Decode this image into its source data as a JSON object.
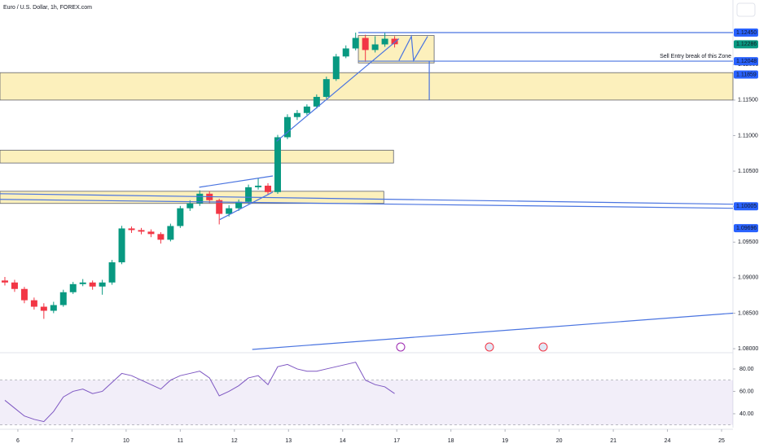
{
  "chart_data": [
    {
      "type": "candlestick",
      "title": "Euro / U.S. Dollar, 1h, FOREX.com",
      "xlim": [
        -0.33,
        13.21
      ],
      "ylim": [
        1.07955,
        1.12909
      ],
      "xticks": [
        {
          "value": 0,
          "label": "6"
        },
        {
          "value": 1,
          "label": "7"
        },
        {
          "value": 2,
          "label": "10"
        },
        {
          "value": 3,
          "label": "11"
        },
        {
          "value": 4,
          "label": "12"
        },
        {
          "value": 5,
          "label": "13"
        },
        {
          "value": 6,
          "label": "14"
        },
        {
          "value": 7,
          "label": "17"
        },
        {
          "value": 8,
          "label": "18"
        },
        {
          "value": 9,
          "label": "19"
        },
        {
          "value": 10,
          "label": "20"
        },
        {
          "value": 11,
          "label": "21"
        },
        {
          "value": 12,
          "label": "24"
        },
        {
          "value": 13,
          "label": "25"
        }
      ],
      "yticks": [
        {
          "value": 1.08,
          "label": "1.08000"
        },
        {
          "value": 1.085,
          "label": "1.08500"
        },
        {
          "value": 1.09,
          "label": "1.09000"
        },
        {
          "value": 1.095,
          "label": "1.09500"
        },
        {
          "value": 1.1,
          "label": "1.10000"
        },
        {
          "value": 1.105,
          "label": "1.10500"
        },
        {
          "value": 1.11,
          "label": "1.11000"
        },
        {
          "value": 1.115,
          "label": "1.11500"
        },
        {
          "value": 1.12,
          "label": "1.12000"
        }
      ],
      "up_color": "#089981",
      "down_color": "#f23645",
      "line_color": "#4a74e0",
      "zone_color": "#fbe9a0",
      "x": [
        -0.24,
        -0.06,
        0.12,
        0.3,
        0.48,
        0.66,
        0.84,
        1.02,
        1.2,
        1.38,
        1.56,
        1.74,
        1.92,
        2.1,
        2.28,
        2.46,
        2.64,
        2.82,
        3.0,
        3.18,
        3.36,
        3.54,
        3.72,
        3.9,
        4.08,
        4.26,
        4.44,
        4.62,
        4.8,
        4.98,
        5.16,
        5.34,
        5.52,
        5.7,
        5.88,
        6.06,
        6.24,
        6.42,
        6.6,
        6.78,
        6.96
      ],
      "open": [
        1.0896,
        1.08932,
        1.08841,
        1.08682,
        1.08591,
        1.08534,
        1.08614,
        1.08795,
        1.08909,
        1.08932,
        1.08875,
        1.08932,
        1.09216,
        1.09693,
        1.0967,
        1.09648,
        1.09614,
        1.09534,
        1.09727,
        1.09977,
        1.10045,
        1.10182,
        1.10091,
        1.09898,
        1.09977,
        1.10068,
        1.10273,
        1.10295,
        1.10205,
        1.10977,
        1.11261,
        1.11318,
        1.11409,
        1.11545,
        1.11795,
        1.12114,
        1.12227,
        1.12375,
        1.12205,
        1.12284,
        1.12364
      ],
      "high": [
        1.0901,
        1.0897,
        1.0887,
        1.0872,
        1.0864,
        1.0866,
        1.0883,
        1.0894,
        1.0898,
        1.0896,
        1.0897,
        1.0925,
        1.0973,
        1.0972,
        1.097,
        1.0968,
        1.0964,
        1.0976,
        1.1001,
        1.1009,
        1.1023,
        1.1022,
        1.1011,
        1.1002,
        1.101,
        1.1031,
        1.104,
        1.1033,
        1.1101,
        1.113,
        1.1136,
        1.1144,
        1.1158,
        1.1183,
        1.1215,
        1.1227,
        1.1245,
        1.1242,
        1.124,
        1.1245,
        1.124
      ],
      "low": [
        1.0889,
        1.088,
        1.0864,
        1.0855,
        1.0842,
        1.085,
        1.0859,
        1.0877,
        1.0888,
        1.0883,
        1.0876,
        1.089,
        1.0919,
        1.0963,
        1.0961,
        1.0957,
        1.0948,
        1.0951,
        1.097,
        1.0994,
        1.1001,
        1.1005,
        1.0975,
        1.0986,
        1.0994,
        1.1004,
        1.1024,
        1.1017,
        1.1018,
        1.1095,
        1.1122,
        1.1129,
        1.1138,
        1.1152,
        1.1177,
        1.1209,
        1.122,
        1.1204,
        1.1217,
        1.1225,
        1.1224
      ],
      "close": [
        1.08932,
        1.08841,
        1.08682,
        1.08591,
        1.08534,
        1.08614,
        1.08795,
        1.08909,
        1.08932,
        1.08875,
        1.08932,
        1.09216,
        1.09693,
        1.0967,
        1.09648,
        1.09614,
        1.09534,
        1.09727,
        1.09977,
        1.10045,
        1.10182,
        1.10091,
        1.09898,
        1.09977,
        1.10068,
        1.10273,
        1.10295,
        1.10205,
        1.10977,
        1.11261,
        1.11318,
        1.11409,
        1.11545,
        1.11795,
        1.12114,
        1.12227,
        1.12375,
        1.12205,
        1.12284,
        1.12364,
        1.12286
      ],
      "zones": [
        {
          "x": [
            -0.33,
            13.21
          ],
          "y": [
            1.115,
            1.11886
          ]
        },
        {
          "x": [
            -0.33,
            6.94
          ],
          "y": [
            1.10614,
            1.10795
          ]
        },
        {
          "x": [
            -0.33,
            6.76
          ],
          "y": [
            1.10045,
            1.10216
          ]
        },
        {
          "x": [
            6.29,
            7.69
          ],
          "y": [
            1.12023,
            1.12409
          ]
        }
      ],
      "lines": [
        {
          "x": [
            6.29,
            13.21
          ],
          "y": [
            1.1245,
            1.1245
          ]
        },
        {
          "x": [
            6.29,
            13.21
          ],
          "y": [
            1.12048,
            1.12048
          ]
        },
        {
          "x": [
            -0.33,
            13.21
          ],
          "y": [
            1.10102,
            1.09977
          ]
        },
        {
          "x": [
            -0.33,
            13.21
          ],
          "y": [
            1.10182,
            1.10034
          ]
        },
        {
          "x": [
            3.73,
            4.71
          ],
          "y": [
            1.09818,
            1.10205
          ]
        },
        {
          "x": [
            3.35,
            4.71
          ],
          "y": [
            1.10273,
            1.10432
          ]
        },
        {
          "x": [
            4.78,
            7.04
          ],
          "y": [
            1.1092,
            1.12364
          ]
        },
        {
          "x": [
            4.33,
            13.21
          ],
          "y": [
            1.07989,
            1.085
          ]
        },
        {
          "x": [
            7.04,
            7.27,
            7.31,
            7.57
          ],
          "y": [
            1.12057,
            1.12398,
            1.12057,
            1.12398
          ]
        },
        {
          "x": [
            7.6,
            7.6
          ],
          "y": [
            1.12048,
            1.115
          ]
        }
      ],
      "annotation": "Sell Entry break of this Zone",
      "price_labels": [
        {
          "value": 1.1245,
          "label": "1.12450",
          "color": "#2962ff"
        },
        {
          "value": 1.12286,
          "label": "1.12286",
          "color": "#089981"
        },
        {
          "value": 1.12048,
          "label": "1.12048",
          "color": "#2962ff"
        },
        {
          "value": 1.11859,
          "label": "1.11859",
          "color": "#2962ff"
        },
        {
          "value": 1.10005,
          "label": "1.10005",
          "color": "#2962ff"
        },
        {
          "value": 1.09696,
          "label": "1.09696",
          "color": "#2962ff"
        }
      ]
    },
    {
      "type": "line",
      "color": "#7e57c2",
      "ylim": [
        27.6,
        91.6
      ],
      "yticks": [
        {
          "value": 40,
          "label": "40.00"
        },
        {
          "value": 60,
          "label": "60.00"
        },
        {
          "value": 80,
          "label": "80.00"
        }
      ],
      "levels": [
        30,
        70
      ],
      "x": [
        -0.24,
        -0.06,
        0.12,
        0.3,
        0.48,
        0.66,
        0.84,
        1.02,
        1.2,
        1.38,
        1.56,
        1.74,
        1.92,
        2.1,
        2.28,
        2.46,
        2.64,
        2.82,
        3.0,
        3.18,
        3.36,
        3.54,
        3.72,
        3.9,
        4.08,
        4.26,
        4.44,
        4.62,
        4.8,
        4.98,
        5.16,
        5.34,
        5.52,
        5.7,
        5.88,
        6.06,
        6.24,
        6.42,
        6.6,
        6.78,
        6.96
      ],
      "values": [
        52,
        45,
        38,
        35,
        33,
        42,
        55,
        60,
        62,
        58,
        60,
        68,
        76,
        74,
        70,
        66,
        62,
        70,
        74,
        76,
        78,
        72,
        56,
        60,
        65,
        72,
        74,
        66,
        82,
        84,
        80,
        78,
        78,
        80,
        82,
        84,
        86,
        70,
        66,
        64,
        58
      ]
    }
  ]
}
